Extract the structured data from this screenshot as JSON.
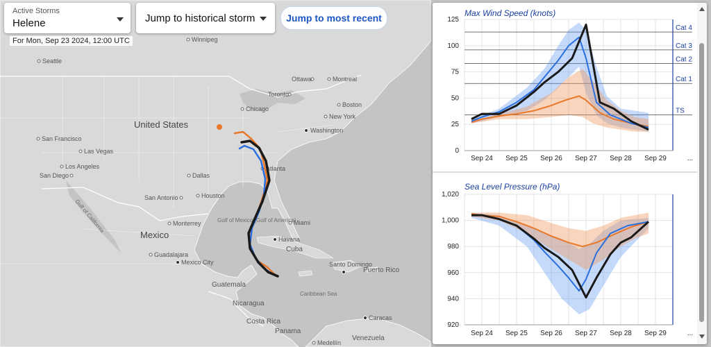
{
  "storm_select": {
    "label": "Active Storms",
    "value": "Helene"
  },
  "historical_select": {
    "value": "Jump to historical storm"
  },
  "recent_button": {
    "label": "Jump to most recent"
  },
  "forecast_date": "For Mon, Sep 23 2024, 12:00 UTC",
  "map": {
    "cities": [
      {
        "name": "Winnipeg"
      },
      {
        "name": "Seattle"
      },
      {
        "name": "Ottawa"
      },
      {
        "name": "Montreal"
      },
      {
        "name": "Toronto"
      },
      {
        "name": "Chicago"
      },
      {
        "name": "Boston"
      },
      {
        "name": "New York"
      },
      {
        "name": "Washington"
      },
      {
        "name": "San Francisco"
      },
      {
        "name": "Las Vegas"
      },
      {
        "name": "Los Angeles"
      },
      {
        "name": "San Diego"
      },
      {
        "name": "Dallas"
      },
      {
        "name": "Atlanta"
      },
      {
        "name": "San Antonio"
      },
      {
        "name": "Houston"
      },
      {
        "name": "Monterrey"
      },
      {
        "name": "Miami"
      },
      {
        "name": "Havana"
      },
      {
        "name": "Guadalajara"
      },
      {
        "name": "Mexico City"
      },
      {
        "name": "Santo Domingo"
      },
      {
        "name": "Caracas"
      },
      {
        "name": "Medellín"
      }
    ],
    "countries": [
      "United States",
      "Mexico",
      "Cuba",
      "Puerto Rico",
      "Guatemala",
      "Nicaragua",
      "Costa Rica",
      "Panama",
      "Venezuela"
    ],
    "water": [
      "Gulf of Mexico (Gulf of America)",
      "Gulf of California",
      "Caribbean Sea"
    ],
    "colors": {
      "land": "#d9d9d9",
      "water": "#c4c4c4",
      "track_observed": "#1a1a1a",
      "track_model": "#2a6fe0",
      "track_ensemble": "#e8782a"
    }
  },
  "chart_data": [
    {
      "type": "line",
      "title": "Max Wind Speed (knots)",
      "x": [
        "Sep 24",
        "Sep 25",
        "Sep 26",
        "Sep 27",
        "Sep 28",
        "Sep 29",
        "..."
      ],
      "ylim": [
        0,
        125
      ],
      "yticks": [
        0,
        25,
        50,
        75,
        100,
        125
      ],
      "reference_lines": [
        {
          "label": "Cat 4",
          "value": 113
        },
        {
          "label": "Cat 3",
          "value": 96
        },
        {
          "label": "Cat 2",
          "value": 83
        },
        {
          "label": "Cat 1",
          "value": 64
        },
        {
          "label": "TS",
          "value": 34
        }
      ],
      "series": [
        {
          "values": [
            [
              23.7,
              30
            ],
            [
              24.0,
              35
            ],
            [
              24.5,
              35
            ],
            [
              25.0,
              43
            ],
            [
              25.5,
              56
            ],
            [
              25.8,
              65
            ],
            [
              26.2,
              75
            ],
            [
              26.6,
              88
            ],
            [
              27.0,
              120
            ],
            [
              27.4,
              46
            ],
            [
              27.8,
              40
            ],
            [
              28.3,
              28
            ],
            [
              28.8,
              20
            ]
          ]
        },
        {
          "values": [
            [
              23.7,
              28
            ],
            [
              24.0,
              32
            ],
            [
              24.5,
              37
            ],
            [
              25.0,
              46
            ],
            [
              25.5,
              58
            ],
            [
              25.8,
              70
            ],
            [
              26.2,
              86
            ],
            [
              26.5,
              100
            ],
            [
              26.8,
              108
            ],
            [
              27.0,
              88
            ],
            [
              27.3,
              46
            ],
            [
              27.7,
              34
            ],
            [
              28.3,
              26
            ],
            [
              28.8,
              22
            ]
          ]
        },
        {
          "values": [
            [
              23.7,
              27
            ],
            [
              24.0,
              30
            ],
            [
              24.5,
              33
            ],
            [
              25.0,
              35
            ],
            [
              25.5,
              38
            ],
            [
              26.0,
              43
            ],
            [
              26.4,
              48
            ],
            [
              26.8,
              52
            ],
            [
              27.0,
              48
            ],
            [
              27.4,
              36
            ],
            [
              27.8,
              30
            ],
            [
              28.3,
              26
            ],
            [
              28.8,
              23
            ]
          ]
        }
      ],
      "bands": [
        {
          "upper": [
            [
              23.7,
              30
            ],
            [
              24.5,
              40
            ],
            [
              25.3,
              60
            ],
            [
              25.8,
              78
            ],
            [
              26.2,
              100
            ],
            [
              26.5,
              115
            ],
            [
              26.8,
              122
            ],
            [
              27.0,
              115
            ],
            [
              27.3,
              80
            ],
            [
              27.6,
              52
            ],
            [
              28.0,
              40
            ],
            [
              28.4,
              38
            ],
            [
              28.8,
              36
            ]
          ],
          "lower": [
            [
              23.7,
              26
            ],
            [
              24.5,
              32
            ],
            [
              25.3,
              38
            ],
            [
              25.8,
              48
            ],
            [
              26.2,
              60
            ],
            [
              26.5,
              70
            ],
            [
              26.8,
              80
            ],
            [
              27.0,
              55
            ],
            [
              27.3,
              34
            ],
            [
              27.6,
              26
            ],
            [
              28.0,
              22
            ],
            [
              28.4,
              20
            ],
            [
              28.8,
              18
            ]
          ]
        },
        {
          "upper": [
            [
              23.7,
              28
            ],
            [
              24.5,
              35
            ],
            [
              25.3,
              42
            ],
            [
              26.0,
              55
            ],
            [
              26.5,
              70
            ],
            [
              26.9,
              78
            ],
            [
              27.2,
              66
            ],
            [
              27.6,
              48
            ],
            [
              28.0,
              38
            ],
            [
              28.4,
              32
            ],
            [
              28.8,
              30
            ]
          ],
          "lower": [
            [
              23.7,
              26
            ],
            [
              24.5,
              30
            ],
            [
              25.3,
              30
            ],
            [
              26.0,
              32
            ],
            [
              26.5,
              34
            ],
            [
              26.9,
              32
            ],
            [
              27.2,
              26
            ],
            [
              27.6,
              22
            ],
            [
              28.0,
              20
            ],
            [
              28.4,
              18
            ],
            [
              28.8,
              18
            ]
          ]
        }
      ]
    },
    {
      "type": "line",
      "title": "Sea Level Pressure (hPa)",
      "x": [
        "Sep 24",
        "Sep 25",
        "Sep 26",
        "Sep 27",
        "Sep 28",
        "Sep 29",
        "..."
      ],
      "ylim": [
        920,
        1020
      ],
      "yticks": [
        "920",
        "940",
        "960",
        "980",
        "1,000",
        "1,020"
      ],
      "series": [
        {
          "values": [
            [
              23.7,
              1004
            ],
            [
              24.0,
              1004
            ],
            [
              24.5,
              1001
            ],
            [
              25.0,
              996
            ],
            [
              25.5,
              986
            ],
            [
              25.8,
              979
            ],
            [
              26.2,
              972
            ],
            [
              26.6,
              962
            ],
            [
              27.0,
              941
            ],
            [
              27.3,
              956
            ],
            [
              27.7,
              974
            ],
            [
              28.0,
              983
            ],
            [
              28.3,
              987
            ],
            [
              28.8,
              999
            ]
          ]
        },
        {
          "values": [
            [
              23.7,
              1004
            ],
            [
              24.0,
              1004
            ],
            [
              24.5,
              1001
            ],
            [
              25.0,
              996
            ],
            [
              25.5,
              985
            ],
            [
              25.8,
              976
            ],
            [
              26.2,
              965
            ],
            [
              26.5,
              956
            ],
            [
              26.8,
              946
            ],
            [
              27.0,
              955
            ],
            [
              27.3,
              975
            ],
            [
              27.7,
              990
            ],
            [
              28.2,
              996
            ],
            [
              28.8,
              999
            ]
          ]
        },
        {
          "values": [
            [
              23.7,
              1005
            ],
            [
              24.0,
              1004
            ],
            [
              24.5,
              1003
            ],
            [
              25.0,
              999
            ],
            [
              25.5,
              994
            ],
            [
              26.0,
              988
            ],
            [
              26.5,
              983
            ],
            [
              26.9,
              980
            ],
            [
              27.3,
              983
            ],
            [
              27.7,
              988
            ],
            [
              28.3,
              995
            ],
            [
              28.8,
              999
            ]
          ]
        }
      ],
      "bands": [
        {
          "upper": [
            [
              23.7,
              1006
            ],
            [
              24.5,
              1004
            ],
            [
              25.3,
              996
            ],
            [
              25.8,
              990
            ],
            [
              26.3,
              986
            ],
            [
              26.8,
              978
            ],
            [
              27.1,
              982
            ],
            [
              27.5,
              992
            ],
            [
              28.0,
              1000
            ],
            [
              28.8,
              1002
            ]
          ],
          "lower": [
            [
              23.7,
              1002
            ],
            [
              24.5,
              996
            ],
            [
              25.3,
              980
            ],
            [
              25.8,
              960
            ],
            [
              26.3,
              940
            ],
            [
              26.8,
              928
            ],
            [
              27.1,
              932
            ],
            [
              27.5,
              950
            ],
            [
              28.0,
              972
            ],
            [
              28.8,
              994
            ]
          ]
        },
        {
          "upper": [
            [
              23.7,
              1006
            ],
            [
              24.5,
              1006
            ],
            [
              25.3,
              1004
            ],
            [
              26.0,
              998
            ],
            [
              26.5,
              994
            ],
            [
              27.0,
              992
            ],
            [
              27.5,
              996
            ],
            [
              28.0,
              1002
            ],
            [
              28.4,
              1004
            ],
            [
              28.8,
              1006
            ]
          ],
          "lower": [
            [
              23.7,
              1003
            ],
            [
              24.5,
              1000
            ],
            [
              25.3,
              990
            ],
            [
              26.0,
              978
            ],
            [
              26.5,
              970
            ],
            [
              27.0,
              962
            ],
            [
              27.5,
              970
            ],
            [
              28.0,
              980
            ],
            [
              28.4,
              986
            ],
            [
              28.8,
              990
            ]
          ]
        }
      ]
    }
  ]
}
